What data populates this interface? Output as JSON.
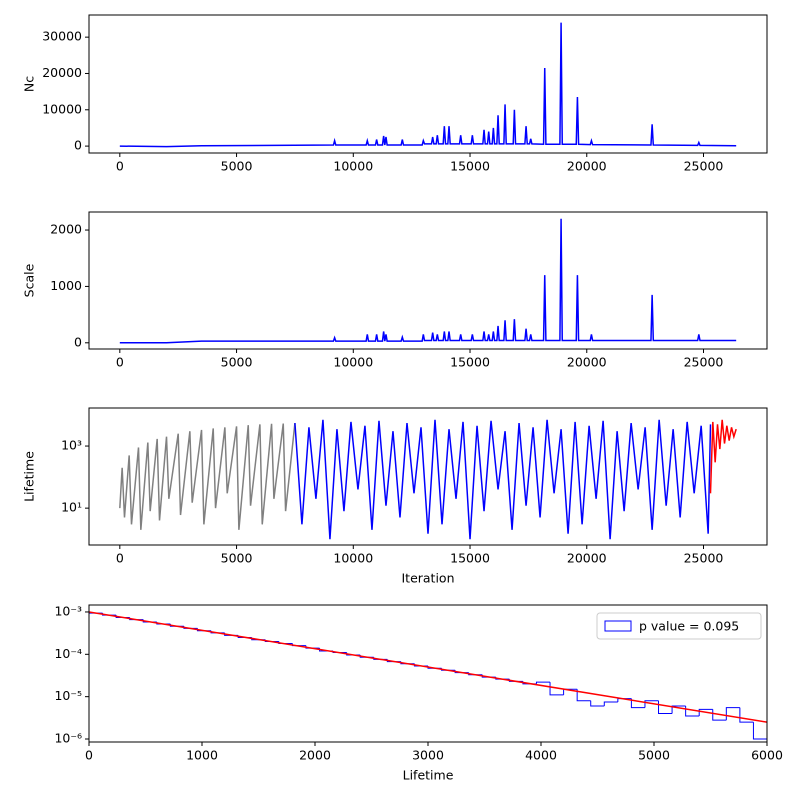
{
  "chart_data": [
    {
      "type": "line",
      "ylabel": "Nc",
      "x": [
        0,
        2000,
        3500,
        9150,
        9200,
        9250,
        10550,
        10600,
        10650,
        10950,
        11000,
        11050,
        11250,
        11300,
        11350,
        11400,
        11450,
        12050,
        12100,
        12150,
        12950,
        13000,
        13050,
        13350,
        13400,
        13450,
        13550,
        13600,
        13650,
        13850,
        13900,
        13950,
        14050,
        14100,
        14150,
        14550,
        14600,
        14650,
        15050,
        15100,
        15150,
        15550,
        15600,
        15650,
        15750,
        15800,
        15850,
        15950,
        16000,
        16050,
        16150,
        16200,
        16250,
        16450,
        16500,
        16550,
        16850,
        16900,
        16950,
        17350,
        17400,
        17450,
        17550,
        17600,
        17650,
        18150,
        18200,
        18250,
        18850,
        18900,
        18950,
        19550,
        19600,
        19650,
        20150,
        20200,
        20250,
        22750,
        22800,
        22850,
        24750,
        24800,
        24850,
        26400
      ],
      "series": [
        {
          "color": "#0000ff",
          "values": [
            0,
            -150,
            100,
            300,
            1500,
            300,
            300,
            1500,
            300,
            300,
            1800,
            300,
            300,
            2800,
            300,
            2500,
            300,
            300,
            1800,
            300,
            300,
            1500,
            600,
            600,
            2500,
            600,
            600,
            3000,
            600,
            600,
            5500,
            600,
            600,
            5500,
            600,
            600,
            3000,
            600,
            600,
            3000,
            600,
            600,
            4500,
            600,
            600,
            4000,
            600,
            600,
            5000,
            600,
            600,
            8500,
            600,
            600,
            11500,
            600,
            600,
            10000,
            600,
            600,
            5500,
            600,
            600,
            2000,
            600,
            500,
            21500,
            500,
            500,
            34000,
            500,
            500,
            13500,
            500,
            400,
            1500,
            400,
            300,
            6000,
            300,
            200,
            1000,
            200,
            100
          ]
        }
      ],
      "xlim": [
        -1320,
        27720
      ],
      "ylim": [
        -1900,
        36100
      ],
      "xticks": [
        0,
        5000,
        10000,
        15000,
        20000,
        25000
      ],
      "yticks": [
        0,
        10000,
        20000,
        30000
      ]
    },
    {
      "type": "line",
      "ylabel": "Scale",
      "x": [
        0,
        2000,
        3500,
        9150,
        9200,
        9250,
        10550,
        10600,
        10650,
        10950,
        11000,
        11050,
        11250,
        11300,
        11350,
        11400,
        11450,
        12050,
        12100,
        12150,
        12950,
        13000,
        13050,
        13350,
        13400,
        13450,
        13550,
        13600,
        13650,
        13850,
        13900,
        13950,
        14050,
        14100,
        14150,
        14550,
        14600,
        14650,
        15050,
        15100,
        15150,
        15550,
        15600,
        15650,
        15750,
        15800,
        15850,
        15950,
        16000,
        16050,
        16150,
        16200,
        16250,
        16450,
        16500,
        16550,
        16850,
        16900,
        16950,
        17350,
        17400,
        17450,
        17550,
        17600,
        17650,
        18150,
        18200,
        18250,
        18850,
        18900,
        18950,
        19550,
        19600,
        19650,
        20150,
        20200,
        20250,
        22750,
        22800,
        22850,
        24750,
        24800,
        24850,
        26400
      ],
      "series": [
        {
          "color": "#0000ff",
          "values": [
            0,
            0,
            30,
            30,
            90,
            30,
            30,
            150,
            30,
            30,
            150,
            30,
            30,
            200,
            30,
            150,
            30,
            30,
            100,
            30,
            30,
            150,
            40,
            40,
            180,
            40,
            40,
            150,
            40,
            40,
            200,
            40,
            40,
            200,
            40,
            40,
            150,
            40,
            40,
            150,
            40,
            40,
            200,
            40,
            40,
            150,
            40,
            40,
            200,
            40,
            40,
            300,
            40,
            40,
            400,
            40,
            40,
            420,
            40,
            40,
            250,
            40,
            40,
            150,
            40,
            40,
            1200,
            40,
            40,
            2200,
            40,
            40,
            1200,
            40,
            40,
            150,
            40,
            40,
            850,
            40,
            40,
            150,
            40,
            40
          ]
        }
      ],
      "xlim": [
        -1320,
        27720
      ],
      "ylim": [
        -110,
        2320
      ],
      "xticks": [
        0,
        5000,
        10000,
        15000,
        20000,
        25000
      ],
      "yticks": [
        0,
        1000,
        2000
      ]
    },
    {
      "type": "line",
      "ylabel": "Lifetime",
      "xlabel": "Iteration",
      "log_y": true,
      "series": [
        {
          "color": "#808080",
          "x": [
            0,
            100,
            200,
            400,
            500,
            800,
            900,
            1200,
            1300,
            1600,
            1700,
            2000,
            2100,
            2500,
            2600,
            3000,
            3100,
            3500,
            3600,
            4000,
            4100,
            4500,
            4600,
            5000,
            5100,
            5500,
            5600,
            6000,
            6100,
            6500,
            6600,
            7000,
            7100,
            7500
          ],
          "values": [
            10,
            200,
            5,
            500,
            3,
            900,
            2,
            1300,
            8,
            1700,
            4,
            2000,
            20,
            2500,
            6,
            3000,
            15,
            3300,
            3,
            3700,
            10,
            4000,
            30,
            4300,
            2,
            4700,
            12,
            5000,
            3,
            5200,
            20,
            5300,
            8,
            5500
          ]
        },
        {
          "color": "#0000ff",
          "x": [
            7500,
            7800,
            8100,
            8400,
            8700,
            9000,
            9300,
            9600,
            9900,
            10200,
            10500,
            10800,
            11100,
            11400,
            11700,
            12000,
            12300,
            12600,
            12900,
            13200,
            13500,
            13800,
            14100,
            14400,
            14700,
            15000,
            15300,
            15600,
            15900,
            16200,
            16500,
            16800,
            17100,
            17400,
            17700,
            18000,
            18300,
            18600,
            18900,
            19200,
            19500,
            19800,
            20100,
            20400,
            20700,
            21000,
            21300,
            21600,
            21900,
            22200,
            22500,
            22800,
            23100,
            23400,
            23700,
            24000,
            24300,
            24600,
            24900,
            25200,
            25300
          ],
          "values": [
            5500,
            3,
            4000,
            20,
            7000,
            1,
            3500,
            8,
            6000,
            40,
            4500,
            2,
            6500,
            12,
            3000,
            5,
            5500,
            30,
            4000,
            1.5,
            7000,
            3,
            3500,
            20,
            6000,
            1,
            4500,
            8,
            6500,
            40,
            3000,
            2,
            5500,
            12,
            4000,
            5,
            7000,
            30,
            3500,
            1.5,
            6000,
            3,
            4500,
            20,
            6500,
            1,
            3000,
            8,
            5500,
            40,
            4000,
            2,
            7000,
            12,
            3500,
            5,
            6000,
            30,
            4500,
            1.5,
            5000
          ]
        },
        {
          "color": "#ff0000",
          "x": [
            25300,
            25400,
            25500,
            25600,
            25700,
            25800,
            25900,
            26000,
            26100,
            26200,
            26300,
            26400
          ],
          "values": [
            30,
            6000,
            300,
            5000,
            800,
            7000,
            1200,
            4500,
            1500,
            4000,
            2000,
            3500
          ]
        }
      ],
      "xlim": [
        -1320,
        27720
      ],
      "ylim": [
        0.65,
        16800
      ],
      "xticks": [
        0,
        5000,
        10000,
        15000,
        20000,
        25000
      ],
      "yticks": [
        {
          "value": 10,
          "label": "10¹"
        },
        {
          "value": 1000,
          "label": "10³"
        }
      ]
    },
    {
      "type": "histogram",
      "xlabel": "Lifetime",
      "log_y": true,
      "legend": "upper right",
      "bins": [
        0,
        120,
        240,
        360,
        480,
        600,
        720,
        840,
        960,
        1080,
        1200,
        1320,
        1440,
        1560,
        1680,
        1800,
        1920,
        2040,
        2160,
        2280,
        2400,
        2520,
        2640,
        2760,
        2880,
        3000,
        3120,
        3240,
        3360,
        3480,
        3600,
        3720,
        3840,
        3960,
        4080,
        4200,
        4320,
        4440,
        4560,
        4680,
        4800,
        4920,
        5040,
        5160,
        5280,
        5400,
        5520,
        5640,
        5760,
        5880,
        6000
      ],
      "series": [
        {
          "name": "p value = 0.095",
          "color": "#0000ff",
          "values": [
            0.00094,
            0.00084,
            0.00074,
            0.00066,
            0.00058,
            0.00052,
            0.00046,
            0.00041,
            0.00036,
            0.00032,
            0.00028,
            0.00025,
            0.00022,
            0.0002,
            0.00018,
            0.00016,
            0.00014,
            0.00012,
            0.00011,
            9.6e-05,
            8.5e-05,
            7.6e-05,
            6.7e-05,
            6e-05,
            5.3e-05,
            4.7e-05,
            4.2e-05,
            3.7e-05,
            3.3e-05,
            2.9e-05,
            2.6e-05,
            2.3e-05,
            2e-05,
            2.2e-05,
            1.1e-05,
            1.5e-05,
            8e-06,
            6e-06,
            7.5e-06,
            9e-06,
            5.5e-06,
            8e-06,
            4e-06,
            6e-06,
            3.5e-06,
            5e-06,
            2.8e-06,
            5.5e-06,
            2.5e-06,
            1e-06
          ]
        }
      ],
      "fit": {
        "color": "#ff0000",
        "x": [
          0,
          6000
        ],
        "values": [
          0.001,
          2.5e-06
        ]
      },
      "xlim": [
        0,
        6000
      ],
      "ylim": [
        8.5e-07,
        0.00146
      ],
      "xticks": [
        0,
        1000,
        2000,
        3000,
        4000,
        5000,
        6000
      ],
      "yticks": [
        {
          "value": 1e-06,
          "label": "10⁻⁶"
        },
        {
          "value": 1e-05,
          "label": "10⁻⁵"
        },
        {
          "value": 0.0001,
          "label": "10⁻⁴"
        },
        {
          "value": 0.001,
          "label": "10⁻³"
        }
      ]
    }
  ]
}
